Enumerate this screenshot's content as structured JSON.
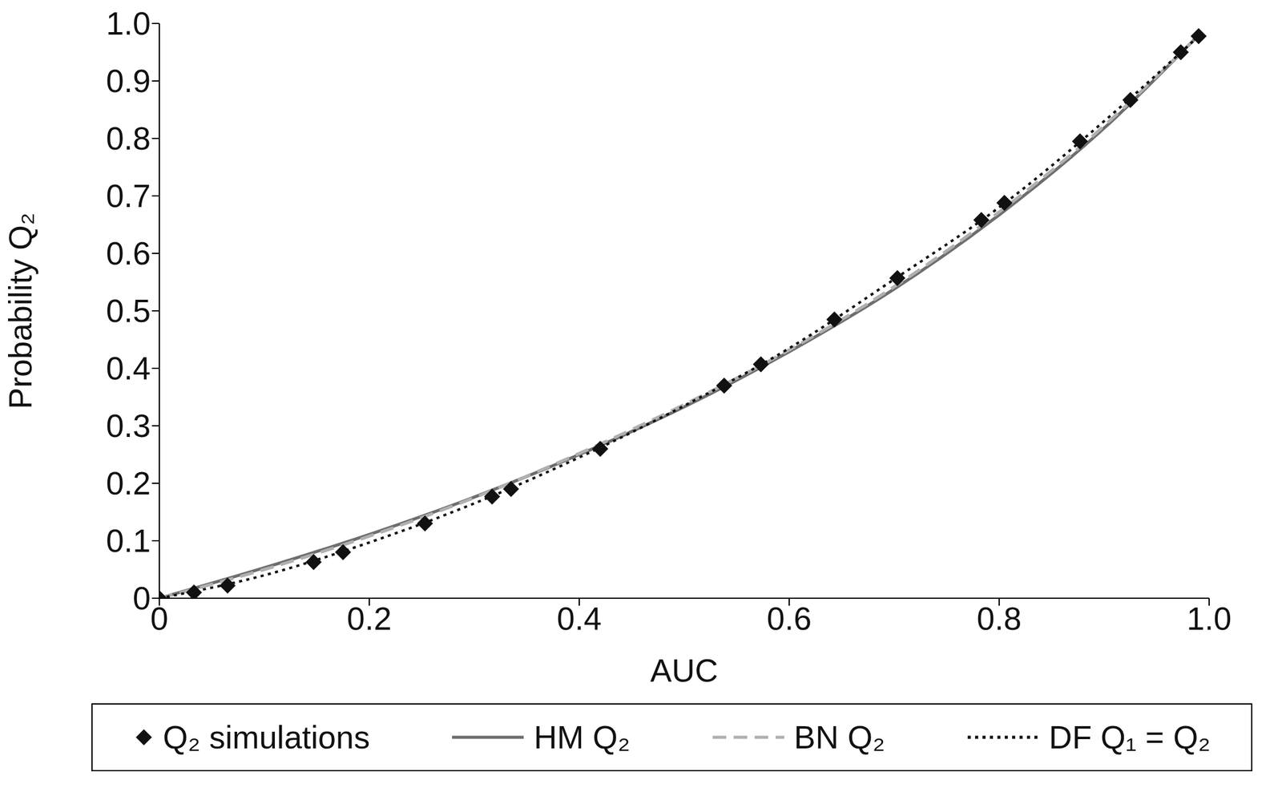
{
  "chart_data": {
    "type": "line",
    "x_label": "AUC",
    "y_label": "Probability Q₂",
    "xlim": [
      0,
      1
    ],
    "ylim": [
      0,
      1
    ],
    "xticks": [
      0,
      0.2,
      0.4,
      0.6,
      0.8,
      {
        "value": 1,
        "label": "1.0"
      }
    ],
    "yticks": [
      0,
      0.1,
      0.2,
      0.3,
      0.4,
      0.5,
      0.6,
      0.7,
      0.8,
      0.9,
      {
        "value": 1,
        "label": "1.0"
      }
    ],
    "grid": false,
    "legend": "bottom",
    "series": [
      {
        "name": "Q₂ simulations",
        "type": "scatter",
        "marker": "diamond",
        "color": "#111111",
        "x": [
          0,
          0.033,
          0.065,
          0.147,
          0.175,
          0.253,
          0.317,
          0.335,
          0.42,
          0.538,
          0.573,
          0.643,
          0.703,
          0.783,
          0.805,
          0.877,
          0.925,
          0.973,
          0.99
        ],
        "values": [
          0,
          0.01,
          0.022,
          0.063,
          0.08,
          0.13,
          0.177,
          0.19,
          0.26,
          0.37,
          0.407,
          0.485,
          0.557,
          0.658,
          0.688,
          0.795,
          0.867,
          0.95,
          0.978
        ]
      },
      {
        "name": "HM Q₂",
        "type": "line",
        "line_style": "solid",
        "color": "#6e6e6e",
        "x": [
          0,
          0.1,
          0.2,
          0.3,
          0.4,
          0.5,
          0.6,
          0.7,
          0.8,
          0.9,
          0.99
        ],
        "values": [
          0,
          0.053,
          0.111,
          0.176,
          0.25,
          0.333,
          0.429,
          0.538,
          0.667,
          0.818,
          0.98
        ]
      },
      {
        "name": "BN Q₂",
        "type": "line",
        "line_style": "dashed",
        "color": "#b0b0b0",
        "x": [
          0,
          0.1,
          0.2,
          0.3,
          0.4,
          0.5,
          0.6,
          0.7,
          0.8,
          0.9,
          0.99
        ],
        "values": [
          0,
          0.05,
          0.108,
          0.175,
          0.252,
          0.337,
          0.432,
          0.542,
          0.672,
          0.822,
          0.98
        ]
      },
      {
        "name": "DF Q₁ = Q₂",
        "type": "line",
        "line_style": "dotted",
        "color": "#111111",
        "x": [
          0,
          0.1,
          0.2,
          0.3,
          0.4,
          0.5,
          0.6,
          0.7,
          0.8,
          0.9,
          0.99
        ],
        "values": [
          0,
          0.04,
          0.097,
          0.165,
          0.245,
          0.335,
          0.435,
          0.555,
          0.68,
          0.83,
          0.978
        ]
      }
    ]
  }
}
